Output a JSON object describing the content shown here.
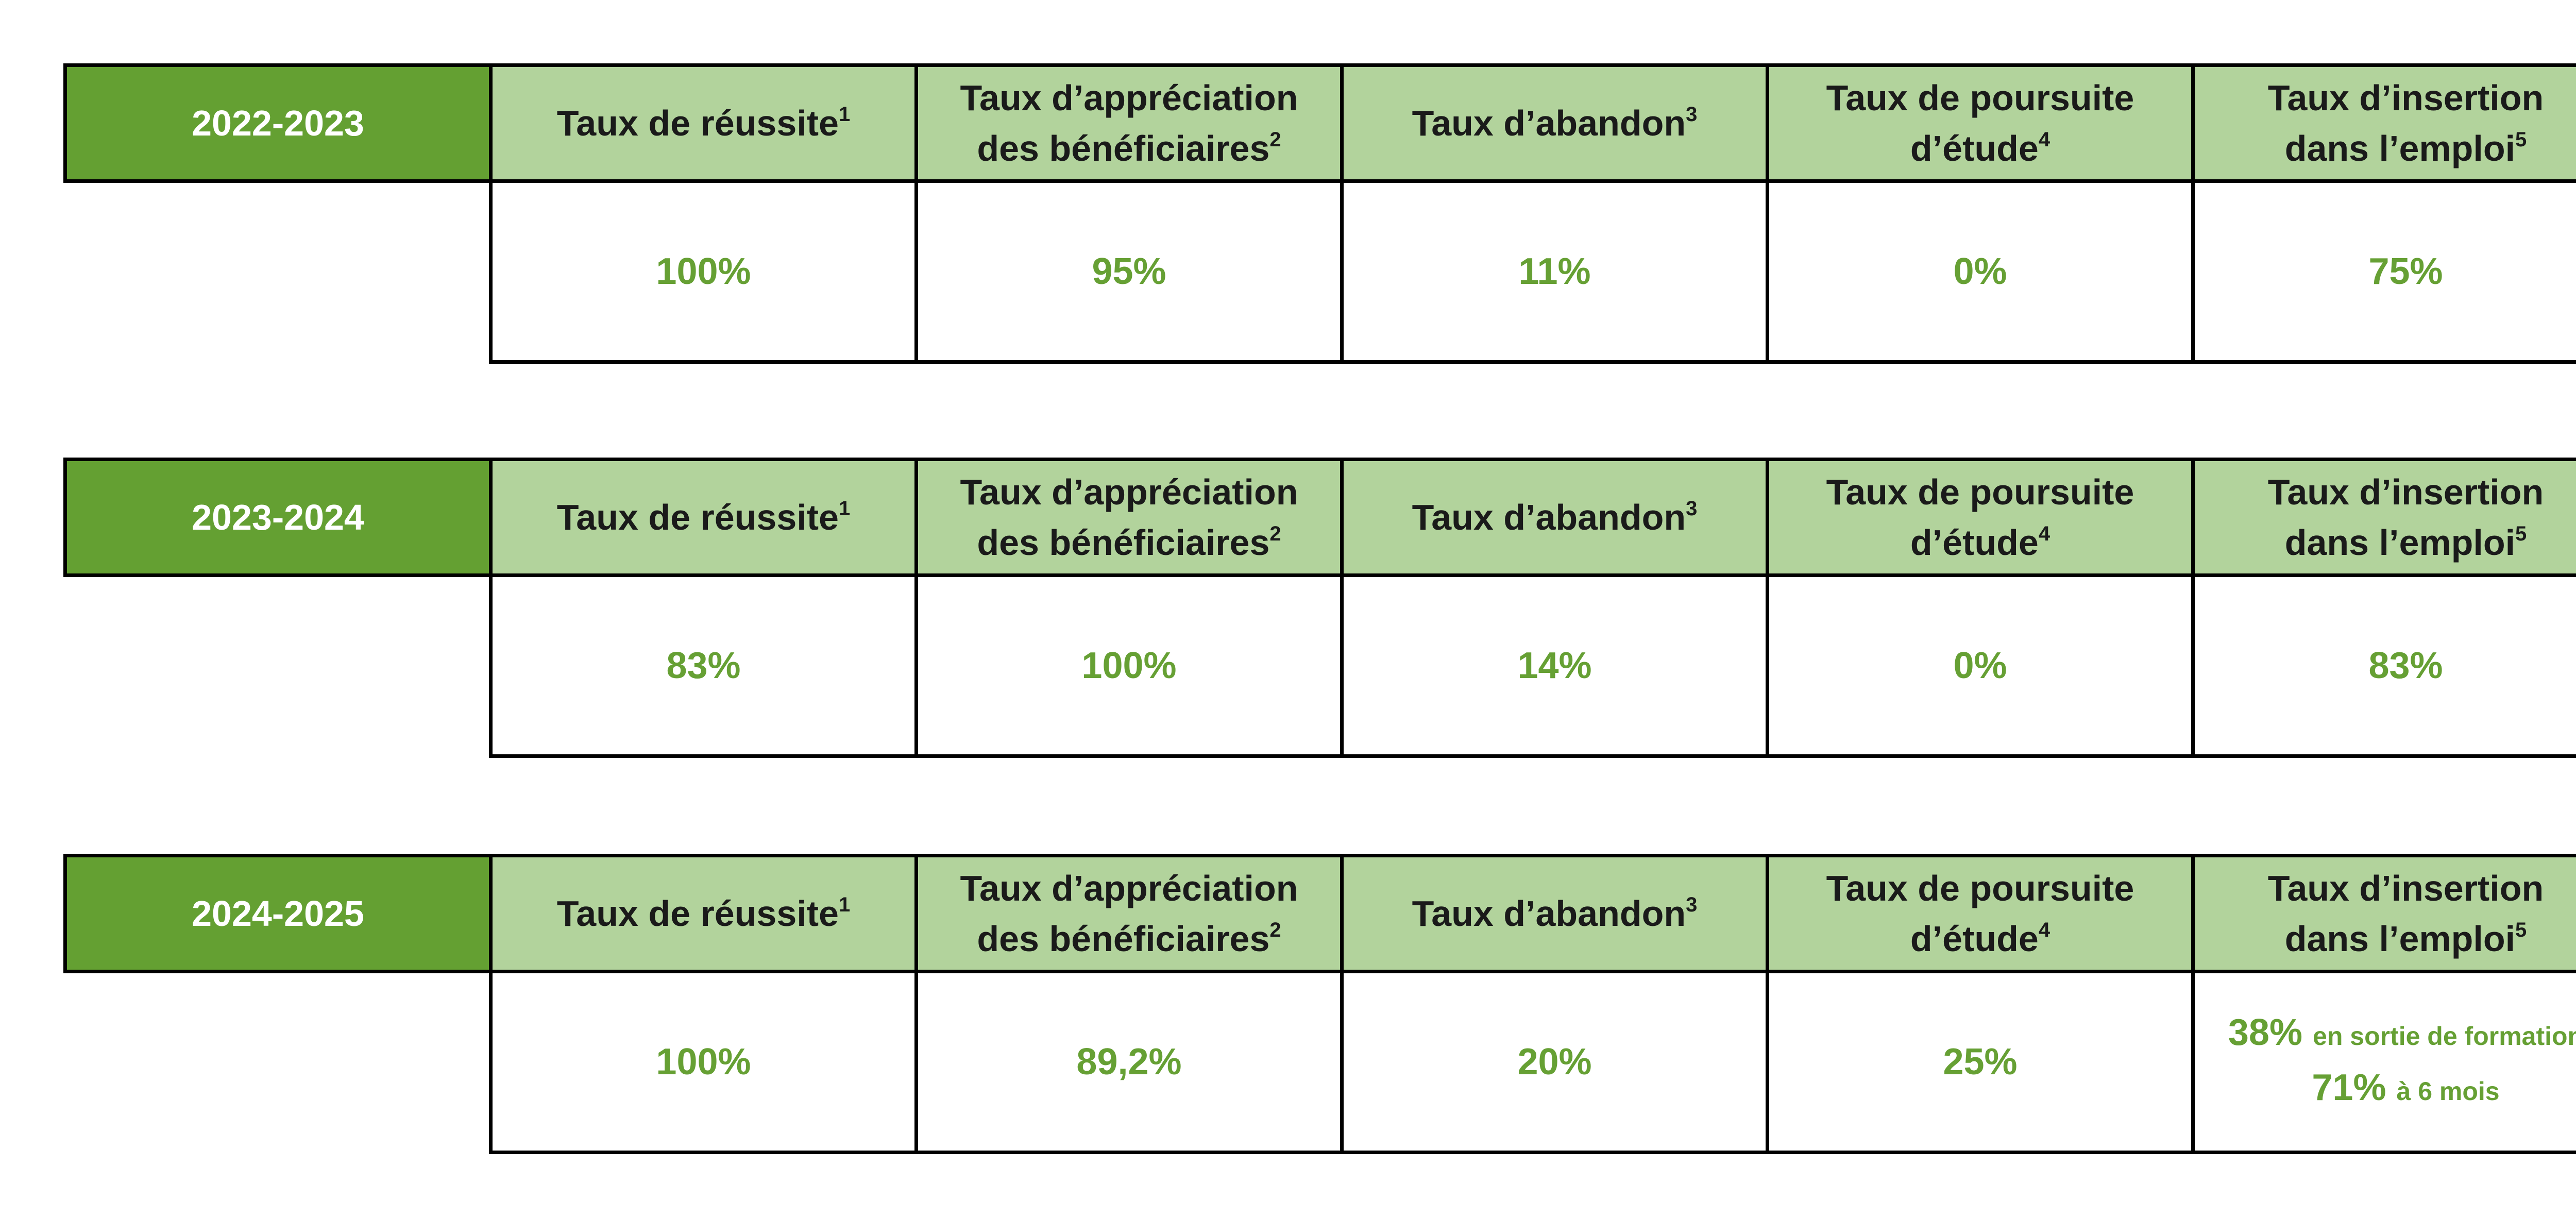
{
  "tables": [
    {
      "year": "2022-2023",
      "headers": [
        {
          "lines": [
            "Taux de réussite"
          ],
          "note": "1"
        },
        {
          "lines": [
            "Taux d’appréciation",
            "des bénéficiaires"
          ],
          "note": "2"
        },
        {
          "lines": [
            "Taux d’abandon"
          ],
          "note": "3"
        },
        {
          "lines": [
            "Taux de poursuite",
            "d’étude"
          ],
          "note": "4"
        },
        {
          "lines": [
            "Taux d’insertion",
            "dans l’emploi"
          ],
          "note": "5"
        }
      ],
      "values": [
        [
          {
            "value": "100%"
          }
        ],
        [
          {
            "value": "95%"
          }
        ],
        [
          {
            "value": "11%"
          }
        ],
        [
          {
            "value": "0%"
          }
        ],
        [
          {
            "value": "75%"
          }
        ]
      ]
    },
    {
      "year": "2023-2024",
      "headers": [
        {
          "lines": [
            "Taux de réussite"
          ],
          "note": "1"
        },
        {
          "lines": [
            "Taux d’appréciation",
            "des bénéficiaires"
          ],
          "note": "2"
        },
        {
          "lines": [
            "Taux d’abandon"
          ],
          "note": "3"
        },
        {
          "lines": [
            "Taux de poursuite",
            "d’étude"
          ],
          "note": "4"
        },
        {
          "lines": [
            "Taux d’insertion",
            "dans l’emploi"
          ],
          "note": "5"
        }
      ],
      "values": [
        [
          {
            "value": "83%"
          }
        ],
        [
          {
            "value": "100%"
          }
        ],
        [
          {
            "value": "14%"
          }
        ],
        [
          {
            "value": "0%"
          }
        ],
        [
          {
            "value": "83%"
          }
        ]
      ]
    },
    {
      "year": "2024-2025",
      "headers": [
        {
          "lines": [
            "Taux de réussite"
          ],
          "note": "1"
        },
        {
          "lines": [
            "Taux d’appréciation",
            "des bénéficiaires"
          ],
          "note": "2"
        },
        {
          "lines": [
            "Taux d’abandon"
          ],
          "note": "3"
        },
        {
          "lines": [
            "Taux de poursuite",
            "d’étude"
          ],
          "note": "4"
        },
        {
          "lines": [
            "Taux d’insertion",
            "dans l’emploi"
          ],
          "note": "5"
        }
      ],
      "values": [
        [
          {
            "value": "100%"
          }
        ],
        [
          {
            "value": "89,2%"
          }
        ],
        [
          {
            "value": "20%"
          }
        ],
        [
          {
            "value": "25%"
          }
        ],
        [
          {
            "value": "38%",
            "detail": "en sortie de formation"
          },
          {
            "value": "71%",
            "detail": "à 6 mois"
          }
        ]
      ]
    }
  ]
}
